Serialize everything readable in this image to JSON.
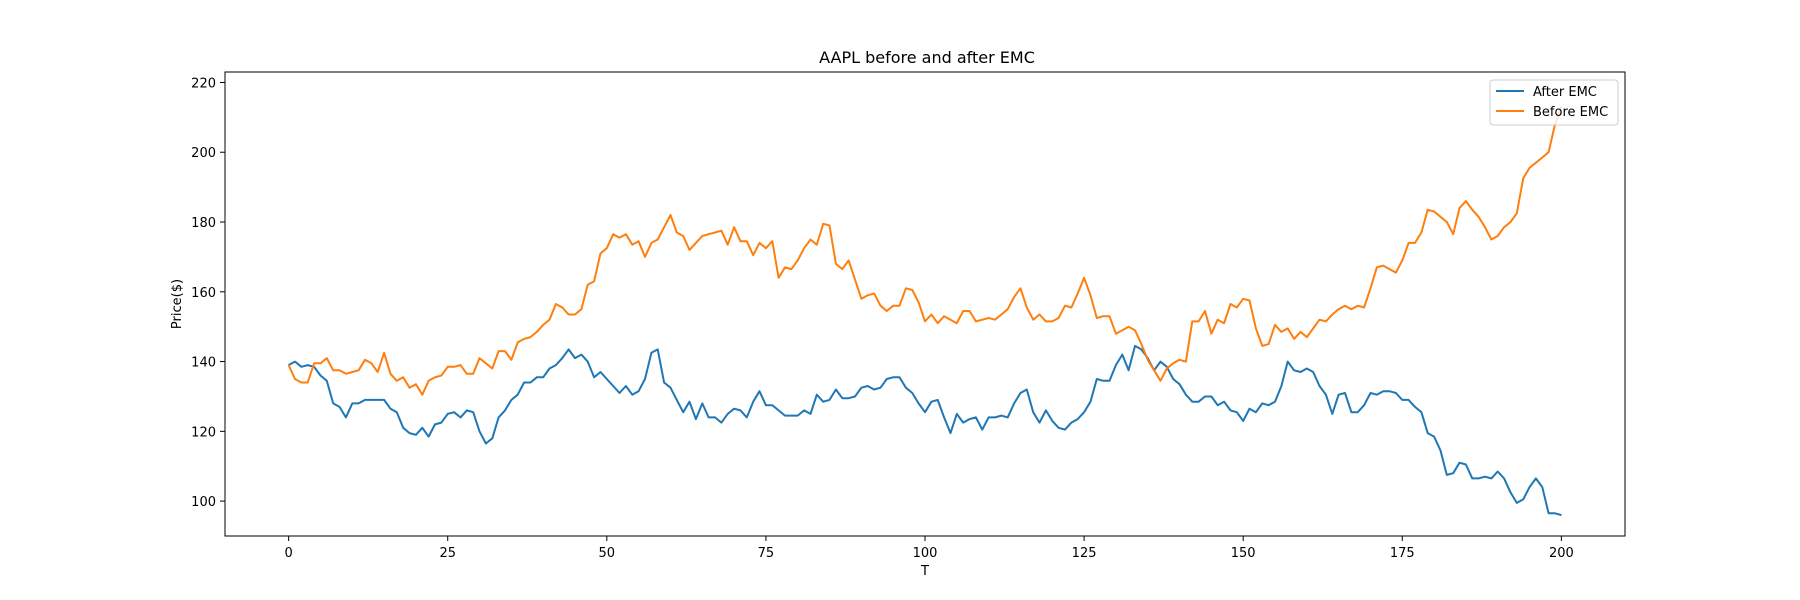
{
  "chart_data": {
    "type": "line",
    "title": "AAPL before and after EMC",
    "xlabel": "T",
    "ylabel": "Price($)",
    "xlim": [
      -10,
      210
    ],
    "ylim": [
      90,
      223
    ],
    "xticks": [
      0,
      25,
      50,
      75,
      100,
      125,
      150,
      175,
      200
    ],
    "yticks": [
      100,
      120,
      140,
      160,
      180,
      200,
      220
    ],
    "legend_position": "upper right",
    "grid": false,
    "series": [
      {
        "name": "After EMC",
        "color": "#1f77b4",
        "x": [
          0,
          1,
          2,
          3,
          4,
          5,
          6,
          7,
          8,
          9,
          10,
          11,
          12,
          13,
          14,
          15,
          16,
          17,
          18,
          19,
          20,
          21,
          22,
          23,
          24,
          25,
          26,
          27,
          28,
          29,
          30,
          31,
          32,
          33,
          34,
          35,
          36,
          37,
          38,
          39,
          40,
          41,
          42,
          43,
          44,
          45,
          46,
          47,
          48,
          49,
          50,
          51,
          52,
          53,
          54,
          55,
          56,
          57,
          58,
          59,
          60,
          61,
          62,
          63,
          64,
          65,
          66,
          67,
          68,
          69,
          70,
          71,
          72,
          73,
          74,
          75,
          76,
          77,
          78,
          79,
          80,
          81,
          82,
          83,
          84,
          85,
          86,
          87,
          88,
          89,
          90,
          91,
          92,
          93,
          94,
          95,
          96,
          97,
          98,
          99,
          100,
          101,
          102,
          103,
          104,
          105,
          106,
          107,
          108,
          109,
          110,
          111,
          112,
          113,
          114,
          115,
          116,
          117,
          118,
          119,
          120,
          121,
          122,
          123,
          124,
          125,
          126,
          127,
          128,
          129,
          130,
          131,
          132,
          133,
          134,
          135,
          136,
          137,
          138,
          139,
          140,
          141,
          142,
          143,
          144,
          145,
          146,
          147,
          148,
          149,
          150,
          151,
          152,
          153,
          154,
          155,
          156,
          157,
          158,
          159,
          160,
          161,
          162,
          163,
          164,
          165,
          166,
          167,
          168,
          169,
          170,
          171,
          172,
          173,
          174,
          175,
          176,
          177,
          178,
          179,
          180,
          181,
          182,
          183,
          184,
          185,
          186,
          187,
          188,
          189,
          190,
          191,
          192,
          193,
          194,
          195,
          196,
          197,
          198,
          199,
          200
        ],
        "y": [
          139,
          140,
          138.5,
          139,
          138.5,
          136,
          134.5,
          128,
          127,
          124,
          128,
          128,
          129,
          129,
          129,
          129,
          126.5,
          125.5,
          121,
          119.5,
          119,
          121,
          118.5,
          122,
          122.5,
          125,
          125.5,
          124,
          126,
          125.5,
          120,
          116.5,
          118,
          124,
          126,
          129,
          130.5,
          134,
          134,
          135.5,
          135.5,
          138,
          139,
          141,
          143.5,
          141,
          142,
          140,
          135.5,
          137,
          135,
          133,
          131,
          133,
          130.5,
          131.5,
          135,
          142.5,
          143.5,
          134,
          132.5,
          129,
          125.5,
          128.5,
          123.5,
          128,
          124,
          124,
          122.5,
          125,
          126.5,
          126,
          124,
          128.5,
          131.5,
          127.5,
          127.5,
          126,
          124.5,
          124.5,
          124.5,
          126,
          125,
          130.5,
          128.5,
          129,
          132,
          129.5,
          129.5,
          130,
          132.5,
          133,
          132,
          132.5,
          135,
          135.5,
          135.5,
          132.5,
          131,
          128,
          125.5,
          128.5,
          129,
          124,
          119.5,
          125,
          122.5,
          123.5,
          124,
          120.5,
          124,
          124,
          124.5,
          124,
          128,
          131,
          132,
          125.5,
          122.5,
          126,
          123,
          121,
          120.5,
          122.5,
          123.5,
          125.5,
          128.5,
          135,
          134.5,
          134.5,
          139,
          142,
          137.5,
          144.5,
          143.5,
          141,
          137.5,
          140,
          138.5,
          135,
          133.5,
          130.5,
          128.5,
          128.5,
          130,
          130,
          127.5,
          128.5,
          126,
          125.5,
          123,
          126.5,
          125.5,
          128,
          127.5,
          128.5,
          133,
          140,
          137.5,
          137,
          138,
          137,
          133,
          130.5,
          125,
          130.5,
          131,
          125.5,
          125.5,
          127.5,
          131,
          130.5,
          131.5,
          131.5,
          131,
          129,
          129,
          127,
          125.5,
          119.5,
          118.5,
          114.5,
          107.5,
          108,
          111,
          110.5,
          106.5,
          106.5,
          107,
          106.5,
          108.5,
          106.5,
          102.5,
          99.5,
          100.5,
          104,
          106.5,
          104,
          96.5,
          96.5,
          96
        ]
      },
      {
        "name": "Before EMC",
        "color": "#ff7f0e",
        "x": [
          0,
          1,
          2,
          3,
          4,
          5,
          6,
          7,
          8,
          9,
          10,
          11,
          12,
          13,
          14,
          15,
          16,
          17,
          18,
          19,
          20,
          21,
          22,
          23,
          24,
          25,
          26,
          27,
          28,
          29,
          30,
          31,
          32,
          33,
          34,
          35,
          36,
          37,
          38,
          39,
          40,
          41,
          42,
          43,
          44,
          45,
          46,
          47,
          48,
          49,
          50,
          51,
          52,
          53,
          54,
          55,
          56,
          57,
          58,
          59,
          60,
          61,
          62,
          63,
          64,
          65,
          66,
          67,
          68,
          69,
          70,
          71,
          72,
          73,
          74,
          75,
          76,
          77,
          78,
          79,
          80,
          81,
          82,
          83,
          84,
          85,
          86,
          87,
          88,
          89,
          90,
          91,
          92,
          93,
          94,
          95,
          96,
          97,
          98,
          99,
          100,
          101,
          102,
          103,
          104,
          105,
          106,
          107,
          108,
          109,
          110,
          111,
          112,
          113,
          114,
          115,
          116,
          117,
          118,
          119,
          120,
          121,
          122,
          123,
          124,
          125,
          126,
          127,
          128,
          129,
          130,
          131,
          132,
          133,
          134,
          135,
          136,
          137,
          138,
          139,
          140,
          141,
          142,
          143,
          144,
          145,
          146,
          147,
          148,
          149,
          150,
          151,
          152,
          153,
          154,
          155,
          156,
          157,
          158,
          159,
          160,
          161,
          162,
          163,
          164,
          165,
          166,
          167,
          168,
          169,
          170,
          171,
          172,
          173,
          174,
          175,
          176,
          177,
          178,
          179,
          180,
          181,
          182,
          183,
          184,
          185,
          186,
          187,
          188,
          189,
          190,
          191,
          192,
          193,
          194,
          195,
          196,
          197,
          198,
          199,
          200
        ],
        "y": [
          139,
          135,
          134,
          134,
          139.5,
          139.5,
          141,
          137.5,
          137.5,
          136.5,
          137,
          137.5,
          140.5,
          139.5,
          137,
          142.5,
          136.5,
          134.5,
          135.5,
          132.5,
          133.5,
          130.5,
          134.5,
          135.5,
          136,
          138.5,
          138.5,
          139,
          136.5,
          136.5,
          141,
          139.5,
          138,
          143,
          143,
          140.5,
          145.5,
          146.5,
          147,
          148.5,
          150.5,
          152,
          156.5,
          155.5,
          153.5,
          153.5,
          155,
          162,
          163,
          171,
          172.5,
          176.5,
          175.5,
          176.5,
          173.5,
          174.5,
          170,
          174,
          175,
          178.5,
          182,
          177,
          176,
          172,
          174,
          176,
          176.5,
          177,
          177.5,
          173.5,
          178.5,
          174.5,
          174.5,
          170.5,
          174,
          172.5,
          174.5,
          164,
          167,
          166.5,
          169,
          172.5,
          175,
          173.5,
          179.5,
          179,
          168,
          166.5,
          169,
          163.5,
          158,
          159,
          159.5,
          156,
          154.5,
          156,
          156,
          161,
          160.5,
          157,
          151.5,
          153.5,
          151,
          153,
          152,
          151,
          154.5,
          154.5,
          151.5,
          152,
          152.5,
          152,
          153.5,
          155,
          158.5,
          161,
          155.5,
          152,
          153.5,
          151.5,
          151.5,
          152.5,
          156,
          155.5,
          159.5,
          164,
          159,
          152.5,
          153,
          153,
          148,
          149,
          150,
          149,
          145,
          140.5,
          137.5,
          134.5,
          138,
          139.5,
          140.5,
          140,
          151.5,
          151.5,
          154.5,
          148,
          152,
          151,
          156.5,
          155.5,
          158,
          157.5,
          149.5,
          144.5,
          145,
          150.5,
          148.5,
          149.5,
          146.5,
          148.5,
          147,
          149.5,
          152,
          151.5,
          153.5,
          155,
          156,
          155,
          156,
          155.5,
          161,
          167,
          167.5,
          166.5,
          165.5,
          169,
          174,
          174,
          177,
          183.5,
          183,
          181.5,
          180,
          176.5,
          184,
          186,
          183.5,
          181.5,
          178.5,
          175,
          176,
          178.5,
          180,
          182.5,
          192.5,
          195.5,
          197,
          198.5,
          200,
          208,
          213
        ]
      }
    ]
  }
}
